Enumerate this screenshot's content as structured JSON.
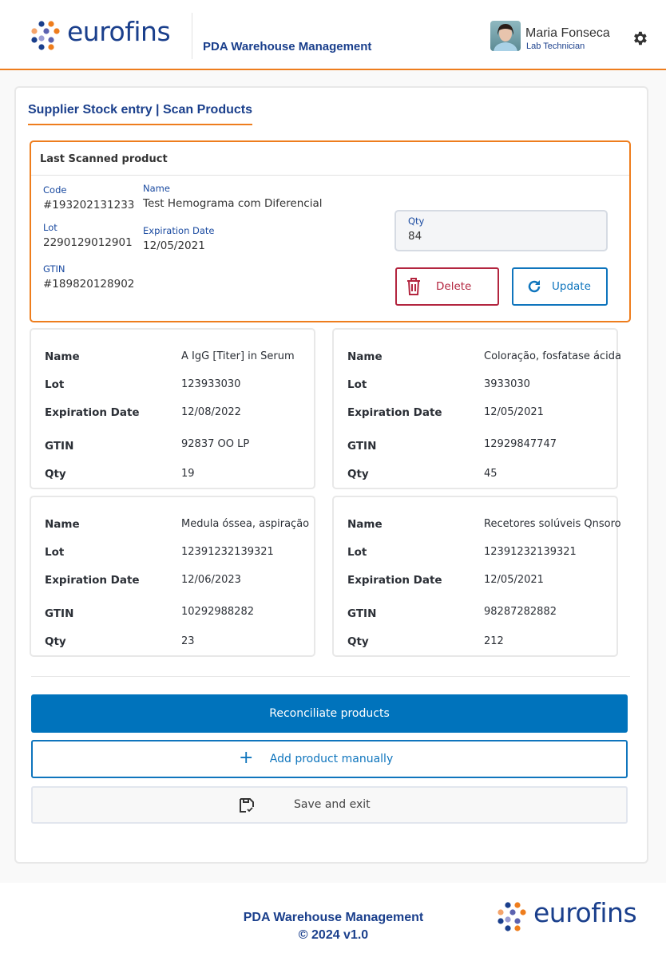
{
  "header": {
    "logo_text": "eurofins",
    "app_title": "PDA Warehouse Management",
    "user": {
      "name": "Maria Fonseca",
      "role": "Lab Technician"
    },
    "icons": [
      "avatar",
      "gear-icon"
    ]
  },
  "tab": {
    "label": "Supplier Stock entry | Scan Products"
  },
  "last_scanned": {
    "title": "Last Scanned product",
    "code_label": "Code",
    "code": "#193202131233",
    "name_label": "Name",
    "name": "Test Hemograma com Diferencial",
    "lot_label": "Lot",
    "lot": "2290129012901",
    "exp_label": "Expiration Date",
    "exp": "12/05/2021",
    "gtin_label": "GTIN",
    "gtin": "#189820128902",
    "qty_label": "Qty",
    "qty": "84",
    "delete_label": "Delete",
    "update_label": "Update"
  },
  "field_labels": {
    "name": "Name",
    "lot": "Lot",
    "exp": "Expiration Date",
    "gtin": "GTIN",
    "qty": "Qty"
  },
  "products": [
    {
      "name": "A IgG [Titer] in Serum",
      "lot": "123933030",
      "exp": "12/08/2022",
      "gtin": "92837 OO LP",
      "qty": "19"
    },
    {
      "name": "Coloração, fosfatase ácida",
      "lot": "3933030",
      "exp": "12/05/2021",
      "gtin": "12929847747",
      "qty": "45"
    },
    {
      "name": "Medula óssea, aspiração",
      "lot": "12391232139321",
      "exp": "12/06/2023",
      "gtin": "10292988282",
      "qty": "23"
    },
    {
      "name": "Recetores solúveis Qnsoro",
      "lot": "12391232139321",
      "exp": "12/05/2021",
      "gtin": "98287282882",
      "qty": "212"
    }
  ],
  "actions": {
    "reconciliate": "Reconciliate products",
    "add_manual": "Add product manually",
    "save_exit": "Save and exit"
  },
  "footer": {
    "title": "PDA Warehouse Management",
    "copyright": "© 2024 v1.0",
    "logo_text": "eurofins"
  },
  "colors": {
    "brand_blue": "#1a3f8c",
    "accent_orange": "#ee7d1d",
    "primary": "#0073bc",
    "danger": "#b3253f"
  }
}
